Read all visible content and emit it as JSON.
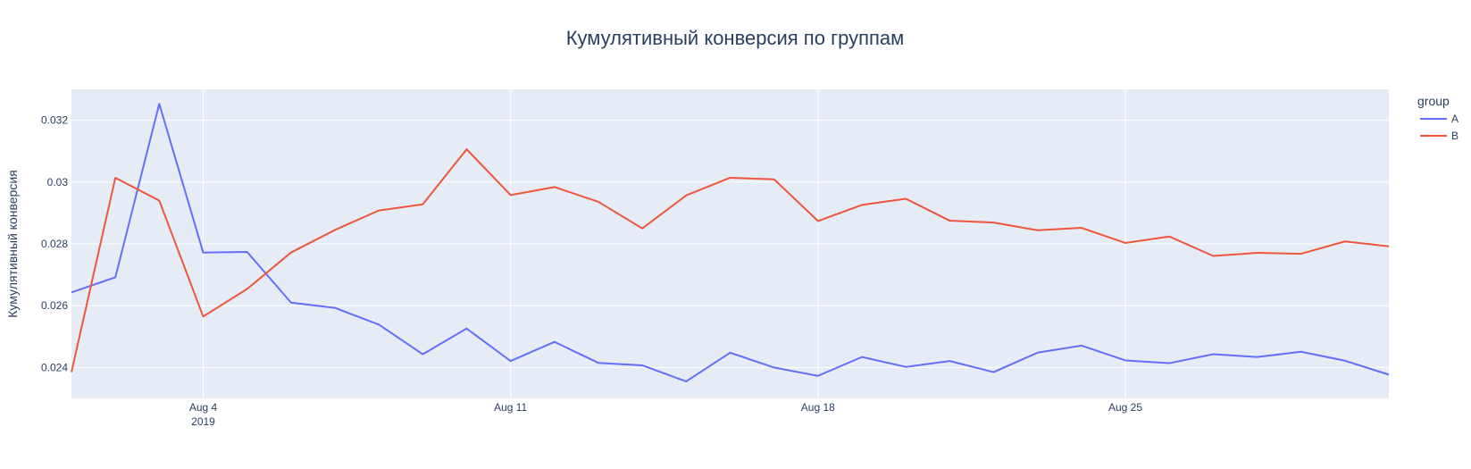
{
  "chart_data": {
    "type": "line",
    "title": "Кумулятивный конверсия по группам",
    "xlabel": "",
    "ylabel": "Кумулятивный конверсия",
    "x_dates": [
      "2019-08-01",
      "2019-08-02",
      "2019-08-03",
      "2019-08-04",
      "2019-08-05",
      "2019-08-06",
      "2019-08-07",
      "2019-08-08",
      "2019-08-09",
      "2019-08-10",
      "2019-08-11",
      "2019-08-12",
      "2019-08-13",
      "2019-08-14",
      "2019-08-15",
      "2019-08-16",
      "2019-08-17",
      "2019-08-18",
      "2019-08-19",
      "2019-08-20",
      "2019-08-21",
      "2019-08-22",
      "2019-08-23",
      "2019-08-24",
      "2019-08-25",
      "2019-08-26",
      "2019-08-27",
      "2019-08-28",
      "2019-08-29",
      "2019-08-30",
      "2019-08-31"
    ],
    "xlim": [
      "2019-08-01",
      "2019-08-31"
    ],
    "ylim": [
      0.023,
      0.033
    ],
    "x_ticks": [
      {
        "date": "2019-08-04",
        "label": "Aug 4",
        "sublabel": "2019"
      },
      {
        "date": "2019-08-11",
        "label": "Aug 11",
        "sublabel": ""
      },
      {
        "date": "2019-08-18",
        "label": "Aug 18",
        "sublabel": ""
      },
      {
        "date": "2019-08-25",
        "label": "Aug 25",
        "sublabel": ""
      }
    ],
    "y_ticks": [
      {
        "value": 0.024,
        "label": "0.024"
      },
      {
        "value": 0.026,
        "label": "0.026"
      },
      {
        "value": 0.028,
        "label": "0.028"
      },
      {
        "value": 0.03,
        "label": "0.03"
      },
      {
        "value": 0.032,
        "label": "0.032"
      }
    ],
    "grid": true,
    "legend_title": "group",
    "legend_position": "top-right",
    "series": [
      {
        "name": "A",
        "color": "#636efa",
        "values": [
          0.02643,
          0.02692,
          0.03253,
          0.02772,
          0.02774,
          0.0261,
          0.02593,
          0.02539,
          0.02443,
          0.02526,
          0.02421,
          0.02483,
          0.02415,
          0.02407,
          0.02355,
          0.02448,
          0.024,
          0.02373,
          0.02434,
          0.02402,
          0.02421,
          0.02385,
          0.02448,
          0.02471,
          0.02423,
          0.02414,
          0.02443,
          0.02434,
          0.02451,
          0.02422,
          0.02377
        ]
      },
      {
        "name": "B",
        "color": "#ef553b",
        "values": [
          0.02385,
          0.03014,
          0.0294,
          0.02565,
          0.02654,
          0.02772,
          0.02845,
          0.02908,
          0.02928,
          0.03106,
          0.02958,
          0.02984,
          0.02936,
          0.0285,
          0.02957,
          0.03014,
          0.03009,
          0.02874,
          0.02926,
          0.02946,
          0.02875,
          0.02869,
          0.02844,
          0.02852,
          0.02803,
          0.02824,
          0.02761,
          0.02771,
          0.02768,
          0.02808,
          0.02792
        ]
      }
    ]
  }
}
